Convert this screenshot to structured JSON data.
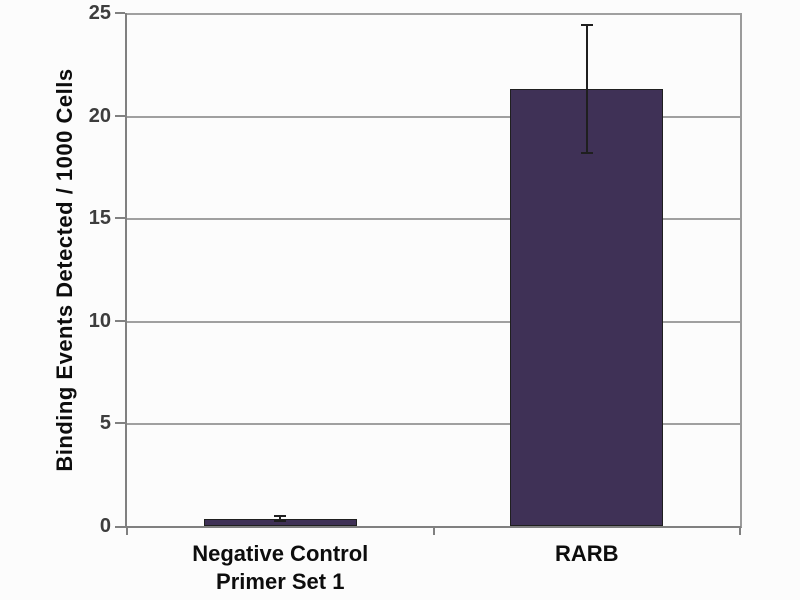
{
  "chart_data": {
    "type": "bar",
    "title": "",
    "xlabel": "",
    "ylabel": "Binding Events Detected / 1000 Cells",
    "categories": [
      "Negative Control\nPrimer Set 1",
      "RARB"
    ],
    "values": [
      0.35,
      21.3
    ],
    "error_bars": [
      0.12,
      3.1
    ],
    "ylim": [
      0,
      25
    ],
    "yticks": [
      0,
      5,
      10,
      15,
      20,
      25
    ],
    "grid": true,
    "legend_position": "none",
    "colors": {
      "bar_fill": "#3f3156",
      "bar_border": "#1f1f1f",
      "gridline": "#a0a0a0",
      "axis": "#808080",
      "error_bar": "#1f1f1f",
      "tick_label": "#3d3d3d",
      "category_label": "#0d0d0d",
      "background": "#fcfcfc"
    }
  }
}
